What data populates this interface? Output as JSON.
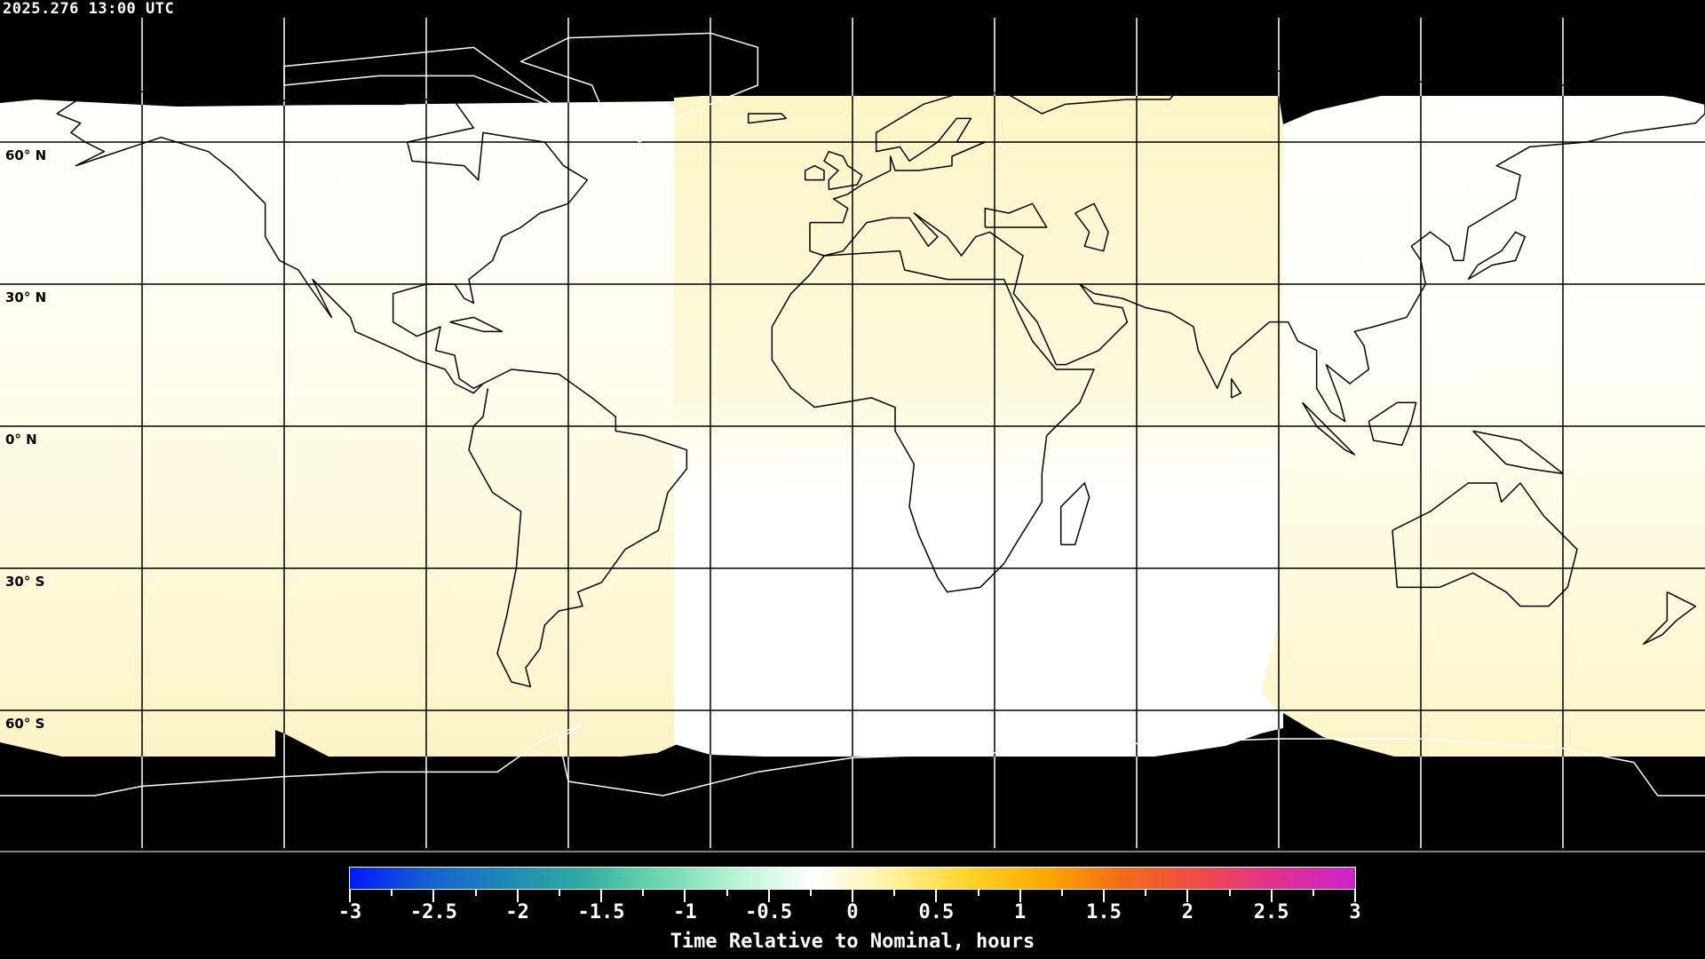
{
  "timestamp": "2025.276 13:00 UTC",
  "map": {
    "projection": "equirectangular",
    "grid_spacing_deg": 30,
    "lat_labels": [
      "60° N",
      "30° N",
      "0° N",
      "30° S",
      "60° S"
    ],
    "no_data_color": "#000000",
    "region_colors": {
      "near_zero": "#ffffff",
      "slightly_late": "#fcf6c8"
    }
  },
  "colorbar": {
    "ticks": [
      "-3",
      "-2.5",
      "-2",
      "-1.5",
      "-1",
      "-0.5",
      "0",
      "0.5",
      "1",
      "1.5",
      "2",
      "2.5",
      "3"
    ],
    "range": [
      -3,
      3
    ],
    "label": "Time Relative to Nominal, hours",
    "colors": [
      "#0018ff",
      "#1560d0",
      "#1f88b8",
      "#30aaa0",
      "#6cd8ae",
      "#b8f4d4",
      "#ffffff",
      "#fff3a0",
      "#ffd428",
      "#ffa800",
      "#f26a1a",
      "#f04a4a",
      "#e03090",
      "#cc22cc"
    ]
  }
}
